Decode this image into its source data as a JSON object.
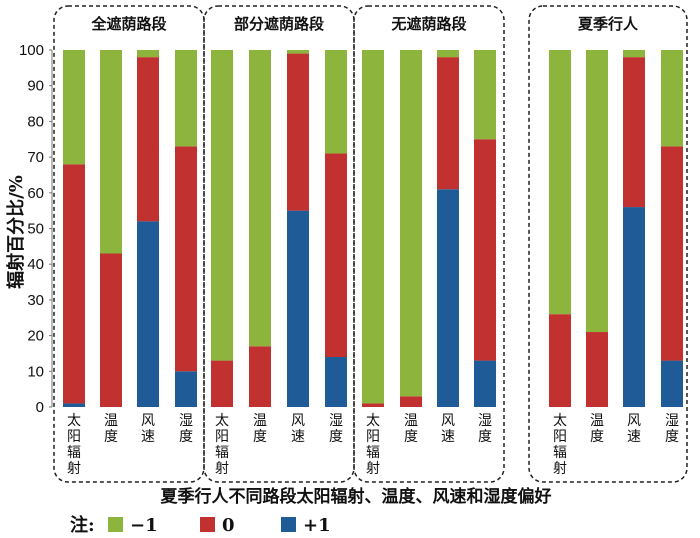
{
  "chart_data": {
    "type": "bar",
    "stacked": true,
    "percent": true,
    "ylabel": "辐射百分比/%",
    "ylim": [
      0,
      100
    ],
    "yticks": [
      0,
      10,
      20,
      30,
      40,
      50,
      60,
      70,
      80,
      90,
      100
    ],
    "xlabel": "夏季行人不同路段太阳辐射、温度、风速和湿度偏好",
    "legend": {
      "prefix": "注:",
      "entries": [
        {
          "name": "−1",
          "color": "#8db43c"
        },
        {
          "name": "0",
          "color": "#c0312f"
        },
        {
          "name": "+1",
          "color": "#1e5b97"
        }
      ]
    },
    "categories": [
      "太阳辐射",
      "温度",
      "风速",
      "湿度"
    ],
    "groups": [
      {
        "label": "全遮荫路段",
        "bars": [
          {
            "category": "太阳辐射",
            "plus1": 1,
            "zero": 67,
            "minus1": 32
          },
          {
            "category": "温度",
            "plus1": 0,
            "zero": 43,
            "minus1": 57
          },
          {
            "category": "风速",
            "plus1": 52,
            "zero": 46,
            "minus1": 2
          },
          {
            "category": "湿度",
            "plus1": 10,
            "zero": 63,
            "minus1": 27
          }
        ]
      },
      {
        "label": "部分遮荫路段",
        "bars": [
          {
            "category": "太阳辐射",
            "plus1": 0,
            "zero": 13,
            "minus1": 87
          },
          {
            "category": "温度",
            "plus1": 0,
            "zero": 17,
            "minus1": 83
          },
          {
            "category": "风速",
            "plus1": 55,
            "zero": 44,
            "minus1": 1
          },
          {
            "category": "湿度",
            "plus1": 14,
            "zero": 57,
            "minus1": 29
          }
        ]
      },
      {
        "label": "无遮荫路段",
        "bars": [
          {
            "category": "太阳辐射",
            "plus1": 0,
            "zero": 1,
            "minus1": 99
          },
          {
            "category": "温度",
            "plus1": 0,
            "zero": 3,
            "minus1": 97
          },
          {
            "category": "风速",
            "plus1": 61,
            "zero": 37,
            "minus1": 2
          },
          {
            "category": "湿度",
            "plus1": 13,
            "zero": 62,
            "minus1": 25
          }
        ]
      },
      {
        "label": "夏季行人",
        "bars": [
          {
            "category": "太阳辐射",
            "plus1": 0,
            "zero": 26,
            "minus1": 74
          },
          {
            "category": "温度",
            "plus1": 0,
            "zero": 21,
            "minus1": 79
          },
          {
            "category": "风速",
            "plus1": 56,
            "zero": 42,
            "minus1": 2
          },
          {
            "category": "湿度",
            "plus1": 13,
            "zero": 60,
            "minus1": 27
          }
        ]
      }
    ],
    "grid": false
  }
}
